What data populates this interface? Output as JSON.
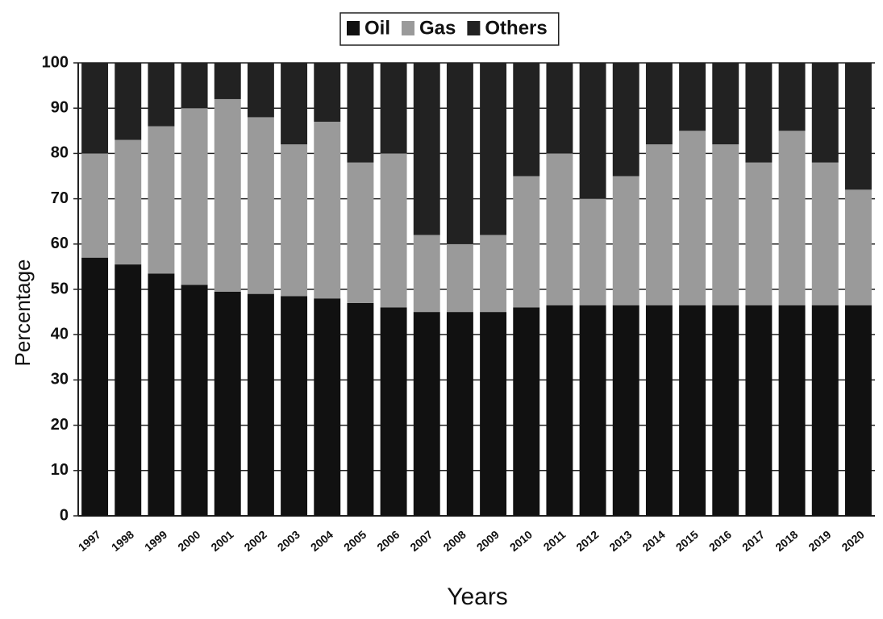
{
  "chart_data": {
    "type": "stacked_bar",
    "x_label": "Years",
    "y_label": "Percentage",
    "categories": [
      "1997",
      "1998",
      "1999",
      "2000",
      "2001",
      "2002",
      "2003",
      "2004",
      "2005",
      "2006",
      "2007",
      "2008",
      "2009",
      "2010",
      "2011",
      "2012",
      "2013",
      "2014",
      "2015",
      "2016",
      "2017",
      "2018",
      "2019",
      "2020"
    ],
    "series": [
      {
        "name": "Oil",
        "color": "#111111",
        "values": [
          57,
          55.5,
          53.5,
          51,
          49.5,
          49,
          48.5,
          48,
          47,
          46,
          45,
          45,
          45,
          46,
          46.5,
          46.5,
          46.5,
          46.5,
          46.5,
          46.5,
          46.5,
          46.5,
          46.5,
          46.5
        ]
      },
      {
        "name": "Gas",
        "color": "#9a9a9a",
        "values": [
          23,
          27.5,
          32.5,
          39,
          42.5,
          39,
          33.5,
          39,
          31,
          34,
          17,
          15,
          17,
          29,
          33.5,
          23.5,
          28.5,
          35.5,
          38.5,
          35.5,
          31.5,
          38.5,
          31.5,
          25.5
        ]
      },
      {
        "name": "Others",
        "color": "#222222",
        "values": [
          20,
          17,
          14,
          10,
          8,
          12,
          18,
          13,
          22,
          20,
          38,
          40,
          38,
          25,
          20,
          30,
          25,
          18,
          15,
          18,
          22,
          15,
          22,
          28
        ]
      }
    ],
    "ylim": [
      0,
      100
    ],
    "yticks": [
      0,
      10,
      20,
      30,
      40,
      50,
      60,
      70,
      80,
      90,
      100
    ],
    "grid": true,
    "legend": "top"
  }
}
